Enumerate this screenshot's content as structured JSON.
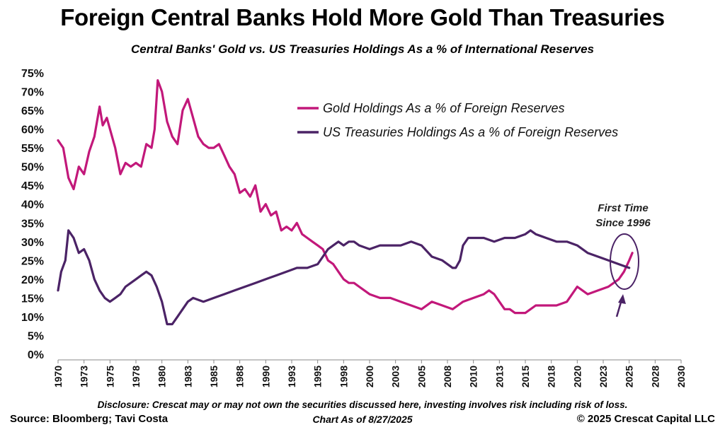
{
  "chart_data": {
    "type": "line",
    "title": "Foreign Central Banks Hold More Gold Than Treasuries",
    "subtitle": "Central Banks' Gold vs. US Treasuries Holdings As a % of International Reserves",
    "ylim": [
      0,
      75
    ],
    "xlim": [
      1970,
      2030
    ],
    "y_ticks": [
      "0%",
      "5%",
      "10%",
      "15%",
      "20%",
      "25%",
      "30%",
      "35%",
      "40%",
      "45%",
      "50%",
      "55%",
      "60%",
      "65%",
      "70%",
      "75%"
    ],
    "x_ticks": [
      "1970",
      "1973",
      "1975",
      "1978",
      "1980",
      "1983",
      "1985",
      "1988",
      "1990",
      "1993",
      "1995",
      "1998",
      "2000",
      "2003",
      "2005",
      "2008",
      "2010",
      "2013",
      "2015",
      "2018",
      "2020",
      "2023",
      "2025",
      "2028",
      "2030"
    ],
    "series": [
      {
        "name": "Gold Holdings As a % of Foreign Reserves",
        "color": "#c2187a",
        "x": [
          1970.0,
          1970.5,
          1971.0,
          1971.5,
          1972.0,
          1972.5,
          1973.0,
          1973.5,
          1974.0,
          1974.3,
          1974.7,
          1975.0,
          1975.5,
          1976.0,
          1976.5,
          1977.0,
          1977.5,
          1978.0,
          1978.5,
          1979.0,
          1979.3,
          1979.6,
          1980.0,
          1980.5,
          1981.0,
          1981.5,
          1982.0,
          1982.5,
          1983.0,
          1983.5,
          1984.0,
          1984.5,
          1985.0,
          1985.5,
          1986.0,
          1986.5,
          1987.0,
          1987.5,
          1988.0,
          1988.5,
          1989.0,
          1989.5,
          1990.0,
          1990.5,
          1991.0,
          1991.5,
          1992.0,
          1992.5,
          1993.0,
          1993.5,
          1994.0,
          1994.5,
          1995.0,
          1995.5,
          1996.0,
          1996.5,
          1997.0,
          1997.5,
          1998.0,
          1998.5,
          1999.0,
          1999.5,
          2000.0,
          2001.0,
          2002.0,
          2003.0,
          2004.0,
          2005.0,
          2006.0,
          2007.0,
          2008.0,
          2008.5,
          2009.0,
          2010.0,
          2011.0,
          2011.5,
          2012.0,
          2013.0,
          2013.5,
          2014.0,
          2015.0,
          2016.0,
          2016.5,
          2017.0,
          2018.0,
          2019.0,
          2020.0,
          2020.5,
          2021.0,
          2022.0,
          2023.0,
          2023.5,
          2024.0,
          2024.5,
          2025.0,
          2025.3
        ],
        "values": [
          57,
          55,
          47,
          44,
          50,
          48,
          54,
          58,
          66,
          61,
          63,
          60,
          55,
          48,
          51,
          50,
          51,
          50,
          56,
          55,
          60,
          73,
          70,
          62,
          58,
          56,
          65,
          68,
          63,
          58,
          56,
          55,
          55,
          56,
          53,
          50,
          48,
          43,
          44,
          42,
          45,
          38,
          40,
          37,
          38,
          33,
          34,
          33,
          35,
          32,
          31,
          30,
          29,
          28,
          25,
          24,
          22,
          20,
          19,
          19,
          18,
          17,
          16,
          15,
          15,
          14,
          13,
          12,
          14,
          13,
          12,
          13,
          14,
          15,
          16,
          17,
          16,
          12,
          12,
          11,
          11,
          13,
          13,
          13,
          13,
          14,
          18,
          17,
          16,
          17,
          18,
          19,
          20,
          22,
          25,
          27
        ]
      },
      {
        "name": "US Treasuries Holdings As a % of Foreign Reserves",
        "color": "#4b2366",
        "x": [
          1970.0,
          1970.3,
          1970.7,
          1971.0,
          1971.5,
          1972.0,
          1972.5,
          1973.0,
          1973.5,
          1974.0,
          1974.5,
          1975.0,
          1975.5,
          1976.0,
          1976.5,
          1977.0,
          1977.5,
          1978.0,
          1978.5,
          1979.0,
          1979.5,
          1980.0,
          1980.5,
          1981.0,
          1981.5,
          1982.0,
          1982.5,
          1983.0,
          1984.0,
          1985.0,
          1986.0,
          1987.0,
          1988.0,
          1989.0,
          1990.0,
          1991.0,
          1992.0,
          1993.0,
          1994.0,
          1995.0,
          1996.0,
          1996.5,
          1997.0,
          1997.5,
          1998.0,
          1998.5,
          1999.0,
          2000.0,
          2001.0,
          2002.0,
          2003.0,
          2004.0,
          2005.0,
          2006.0,
          2007.0,
          2008.0,
          2008.3,
          2008.7,
          2009.0,
          2009.5,
          2010.0,
          2011.0,
          2012.0,
          2013.0,
          2014.0,
          2015.0,
          2015.5,
          2016.0,
          2017.0,
          2018.0,
          2019.0,
          2020.0,
          2021.0,
          2022.0,
          2023.0,
          2024.0,
          2024.5,
          2025.0
        ],
        "values": [
          17,
          22,
          25,
          33,
          31,
          27,
          28,
          25,
          20,
          17,
          15,
          14,
          15,
          16,
          18,
          19,
          20,
          21,
          22,
          21,
          18,
          14,
          8,
          8,
          10,
          12,
          14,
          15,
          14,
          15,
          16,
          17,
          18,
          19,
          20,
          21,
          22,
          23,
          23,
          24,
          28,
          29,
          30,
          29,
          30,
          30,
          29,
          28,
          29,
          29,
          29,
          30,
          29,
          26,
          25,
          23,
          23,
          25,
          29,
          31,
          31,
          31,
          30,
          31,
          31,
          32,
          33,
          32,
          31,
          30,
          30,
          29,
          27,
          26,
          25,
          24,
          23.5,
          23
        ]
      }
    ],
    "annotations": [
      "First Time",
      "Since 1996"
    ],
    "legend_position": "top-right"
  },
  "footer": {
    "disclosure": "Disclosure: Crescat may or may not own the securities discussed here, investing involves risk including risk of loss.",
    "source": "Source: Bloomberg; Tavi Costa",
    "as_of": "Chart As of 8/27/2025",
    "copyright": "© 2025 Crescat Capital LLC"
  }
}
